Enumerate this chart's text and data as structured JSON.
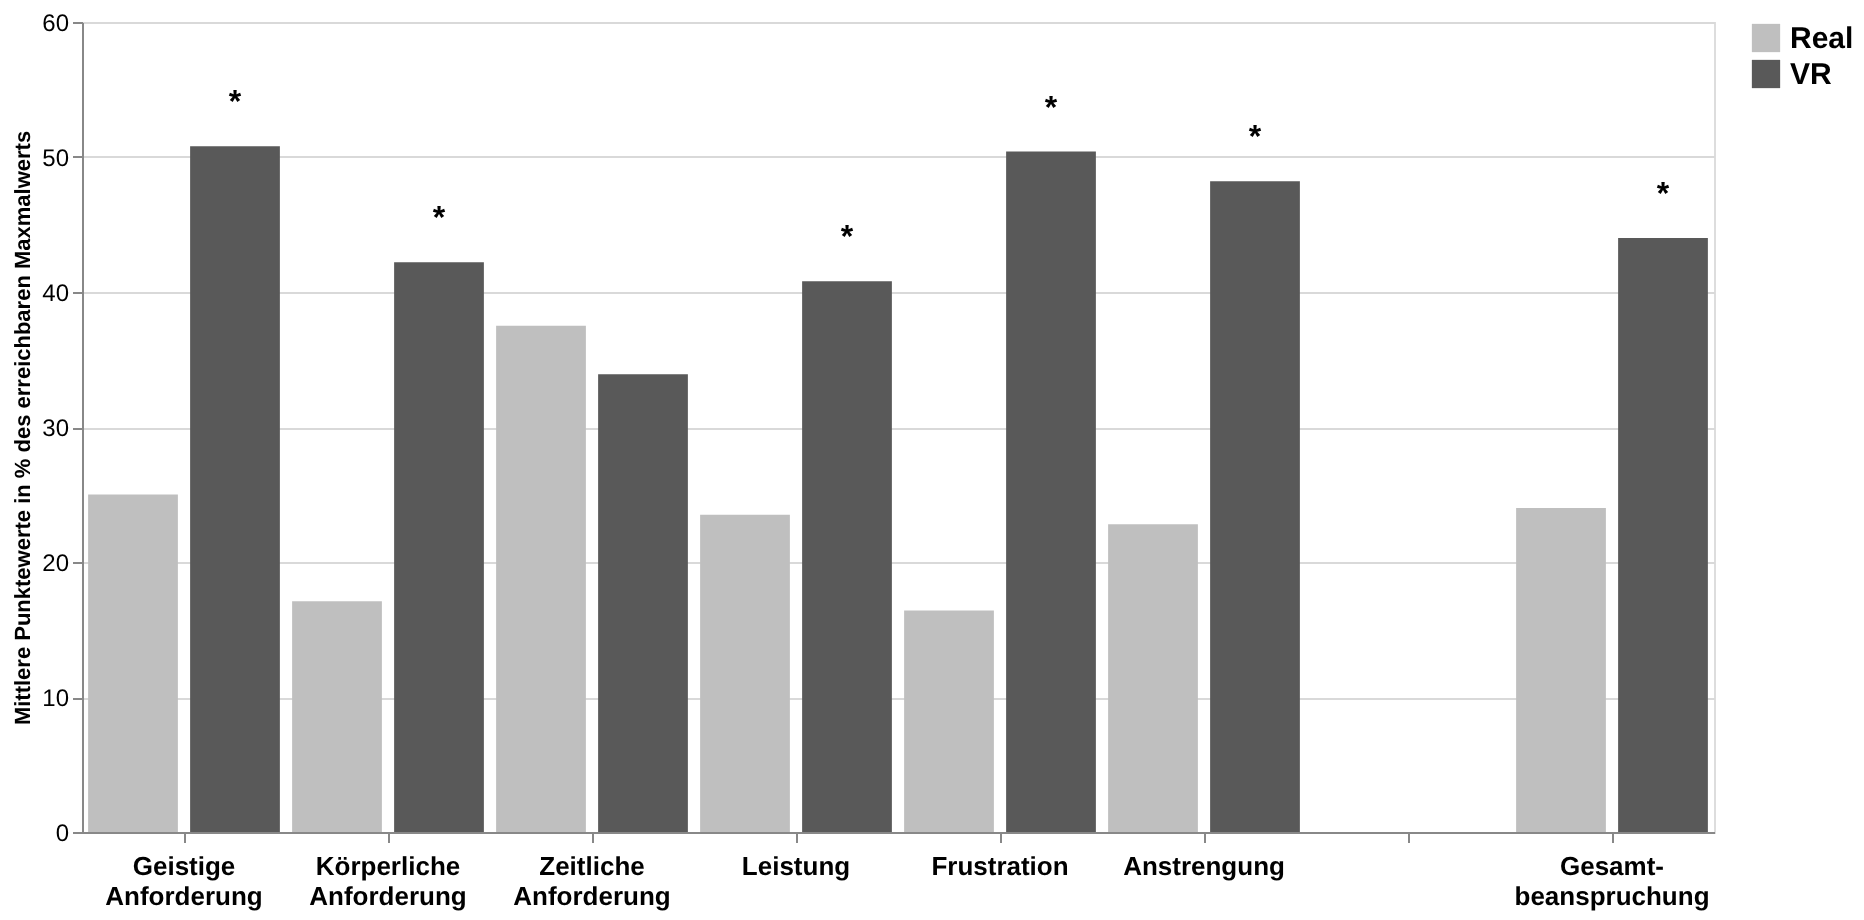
{
  "chart_data": {
    "type": "bar",
    "ylabel": "Mittlere Punktewerte in % des erreichbaren Maxmalwerts",
    "categories": [
      "Geistige Anforderung",
      "Körperliche Anforderung",
      "Zeitliche Anforderung",
      "Leistung",
      "Frustration",
      "Anstrengung",
      null,
      "Gesamt- beanspruchung"
    ],
    "series": [
      {
        "name": "Real",
        "color": "#bfbfbf",
        "values": [
          25,
          17.1,
          37.5,
          23.5,
          16.4,
          22.8,
          null,
          24
        ]
      },
      {
        "name": "VR",
        "color": "#595959",
        "values": [
          50.8,
          42.2,
          33.9,
          40.8,
          50.4,
          48.2,
          null,
          44
        ]
      }
    ],
    "ylim": [
      0,
      60
    ],
    "yticks": [
      0,
      10,
      20,
      30,
      40,
      50,
      60
    ],
    "grid": "y",
    "legend": "right",
    "annotations": [
      {
        "text": "*",
        "x": "Geistige Anforderung",
        "y": 50.8
      },
      {
        "text": "*",
        "x": "Körperliche Anforderung",
        "y": 42.2
      },
      {
        "text": "*",
        "x": "Leistung",
        "y": 40.8
      },
      {
        "text": "*",
        "x": "Frustration",
        "y": 50.4
      },
      {
        "text": "*",
        "x": "Anstrengung",
        "y": 48.2
      },
      {
        "text": "*",
        "x": "Gesamt- beanspruchung",
        "y": 44
      }
    ]
  }
}
